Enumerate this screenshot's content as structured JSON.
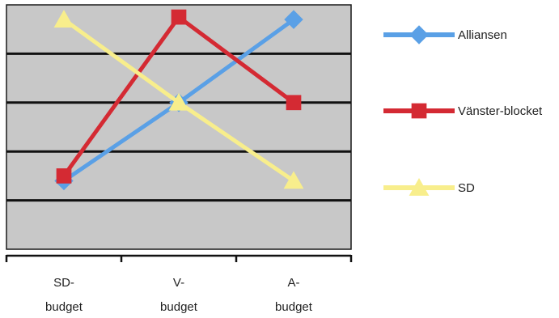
{
  "chart_data": {
    "type": "line",
    "categories": [
      [
        "SD-",
        "budget"
      ],
      [
        "V-",
        "budget"
      ],
      [
        "A-",
        "budget"
      ]
    ],
    "ylim": [
      0,
      5
    ],
    "y_gridlines": [
      1,
      2,
      3,
      4
    ],
    "grid": true,
    "legend_position": "right",
    "plot_background": "#c8c8c8",
    "series": [
      {
        "name": "Alliansen",
        "marker": "diamond",
        "color": "#5aa0e6",
        "values": [
          1.4,
          3.0,
          4.7
        ]
      },
      {
        "name": "Vänster-blocket",
        "marker": "square",
        "color": "#d42a33",
        "values": [
          1.5,
          4.75,
          3.0
        ]
      },
      {
        "name": "SD",
        "marker": "triangle",
        "color": "#f8ee8c",
        "values": [
          4.7,
          3.0,
          1.4
        ]
      }
    ]
  }
}
